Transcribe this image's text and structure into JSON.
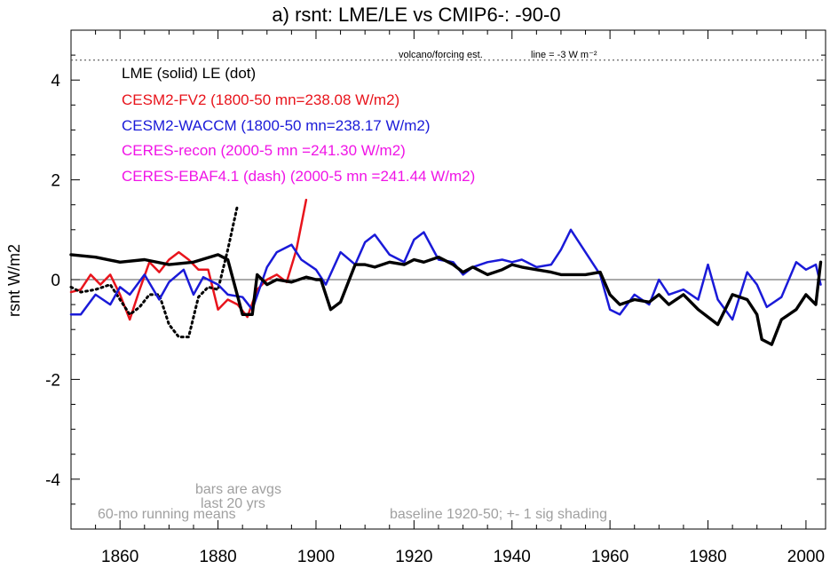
{
  "chart_data": {
    "type": "line",
    "title": "a) rsnt: LME/LE vs CMIP6-: -90-0",
    "ylabel": "rsnt W/m2",
    "xlabel": "",
    "xlim": [
      1850,
      2004
    ],
    "ylim": [
      -5,
      5
    ],
    "x_ticks": [
      1860,
      1880,
      1900,
      1920,
      1940,
      1960,
      1980,
      2000
    ],
    "y_ticks": [
      -4,
      -2,
      0,
      2,
      4
    ],
    "y_tick_labels": [
      "-4",
      "-2",
      "0",
      "2",
      "4"
    ],
    "legend": [
      {
        "text": "LME (solid)   LE (dot)",
        "color": "#000000"
      },
      {
        "text": "CESM2-FV2 (1800-50 mn=238.08 W/m2)",
        "color": "#e8141c"
      },
      {
        "text": "CESM2-WACCM (1800-50 mn=238.17 W/m2)",
        "color": "#1a1ad8"
      },
      {
        "text": "CERES-recon (2000-5 mn =241.30 W/m2)",
        "color": "#f014e6"
      },
      {
        "text": "CERES-EBAF4.1 (dash) (2000-5 mn =241.44 W/m2)",
        "color": "#f014e6"
      }
    ],
    "annotations": {
      "volcano_label": "volcano/forcing est.",
      "volcano_line_label": "line = -3 W m⁻²",
      "running_means": "60-mo running means",
      "bars_note_1": "bars are avgs",
      "bars_note_2": "last 20 yrs",
      "baseline_note": "baseline 1920-50; +- 1 sig shading"
    },
    "reference_lines": {
      "zero": 0,
      "volcano_dotted": 4.4
    },
    "series": [
      {
        "name": "LME (solid)",
        "color": "#000000",
        "x": [
          1850,
          1855,
          1860,
          1865,
          1870,
          1875,
          1880,
          1882,
          1885,
          1887,
          1888,
          1890,
          1892,
          1895,
          1898,
          1900,
          1901,
          1902,
          1903,
          1905,
          1908,
          1910,
          1912,
          1915,
          1918,
          1920,
          1922,
          1925,
          1928,
          1930,
          1932,
          1935,
          1938,
          1940,
          1942,
          1945,
          1948,
          1950,
          1952,
          1955,
          1958,
          1960,
          1962,
          1965,
          1968,
          1970,
          1972,
          1975,
          1978,
          1980,
          1982,
          1985,
          1988,
          1990,
          1991,
          1993,
          1995,
          1998,
          2000,
          2002,
          2003
        ],
        "values": [
          0.5,
          0.45,
          0.35,
          0.4,
          0.3,
          0.35,
          0.5,
          0.4,
          -0.7,
          -0.7,
          0.1,
          -0.1,
          0.0,
          -0.05,
          0.05,
          0.0,
          0.0,
          -0.3,
          -0.6,
          -0.45,
          0.3,
          0.3,
          0.25,
          0.35,
          0.3,
          0.4,
          0.35,
          0.45,
          0.3,
          0.15,
          0.25,
          0.1,
          0.2,
          0.3,
          0.25,
          0.2,
          0.15,
          0.1,
          0.1,
          0.1,
          0.15,
          -0.3,
          -0.5,
          -0.4,
          -0.45,
          -0.3,
          -0.5,
          -0.3,
          -0.6,
          -0.75,
          -0.9,
          -0.3,
          -0.4,
          -0.7,
          -1.2,
          -1.3,
          -0.8,
          -0.6,
          -0.3,
          -0.5,
          0.35
        ]
      },
      {
        "name": "LE (dot)",
        "color": "#000000",
        "x": [
          1850,
          1852,
          1855,
          1858,
          1860,
          1862,
          1864,
          1866,
          1868,
          1870,
          1872,
          1874,
          1876,
          1878,
          1880,
          1882,
          1884
        ],
        "values": [
          -0.15,
          -0.25,
          -0.2,
          -0.1,
          -0.4,
          -0.7,
          -0.55,
          -0.3,
          -0.3,
          -0.9,
          -1.15,
          -1.15,
          -0.35,
          -0.15,
          -0.2,
          0.6,
          1.5
        ]
      },
      {
        "name": "CESM2-FV2",
        "color": "#e8141c",
        "x": [
          1850,
          1852,
          1854,
          1856,
          1858,
          1860,
          1862,
          1864,
          1866,
          1868,
          1870,
          1872,
          1874,
          1876,
          1878,
          1880,
          1882,
          1884,
          1886,
          1888,
          1890,
          1892,
          1894,
          1896,
          1898
        ],
        "values": [
          -0.25,
          -0.2,
          0.1,
          -0.1,
          0.1,
          -0.3,
          -0.8,
          -0.2,
          0.35,
          0.15,
          0.4,
          0.55,
          0.4,
          0.2,
          0.2,
          -0.6,
          -0.4,
          -0.5,
          -0.75,
          -0.2,
          0.0,
          0.1,
          -0.05,
          0.6,
          1.6
        ]
      },
      {
        "name": "CESM2-WACCM",
        "color": "#1a1ad8",
        "x": [
          1850,
          1852,
          1855,
          1858,
          1860,
          1862,
          1865,
          1868,
          1870,
          1873,
          1875,
          1877,
          1880,
          1882,
          1885,
          1887,
          1890,
          1892,
          1895,
          1897,
          1900,
          1902,
          1905,
          1908,
          1910,
          1912,
          1915,
          1918,
          1920,
          1922,
          1925,
          1928,
          1930,
          1932,
          1935,
          1938,
          1940,
          1942,
          1945,
          1948,
          1950,
          1952,
          1955,
          1958,
          1960,
          1962,
          1965,
          1968,
          1970,
          1972,
          1975,
          1978,
          1980,
          1982,
          1985,
          1988,
          1990,
          1992,
          1995,
          1998,
          2000,
          2002,
          2003
        ],
        "values": [
          -0.7,
          -0.7,
          -0.3,
          -0.5,
          -0.15,
          -0.3,
          0.1,
          -0.4,
          -0.05,
          0.2,
          -0.3,
          0.05,
          -0.1,
          -0.3,
          -0.35,
          -0.6,
          0.25,
          0.55,
          0.7,
          0.4,
          0.2,
          -0.1,
          0.55,
          0.3,
          0.75,
          0.9,
          0.5,
          0.35,
          0.8,
          0.95,
          0.4,
          0.35,
          0.1,
          0.25,
          0.35,
          0.4,
          0.35,
          0.4,
          0.25,
          0.3,
          0.6,
          1.0,
          0.55,
          0.1,
          -0.6,
          -0.7,
          -0.3,
          -0.5,
          0.0,
          -0.3,
          -0.2,
          -0.4,
          0.3,
          -0.4,
          -0.8,
          0.15,
          -0.1,
          -0.55,
          -0.35,
          0.35,
          0.2,
          0.3,
          -0.1
        ]
      }
    ]
  }
}
